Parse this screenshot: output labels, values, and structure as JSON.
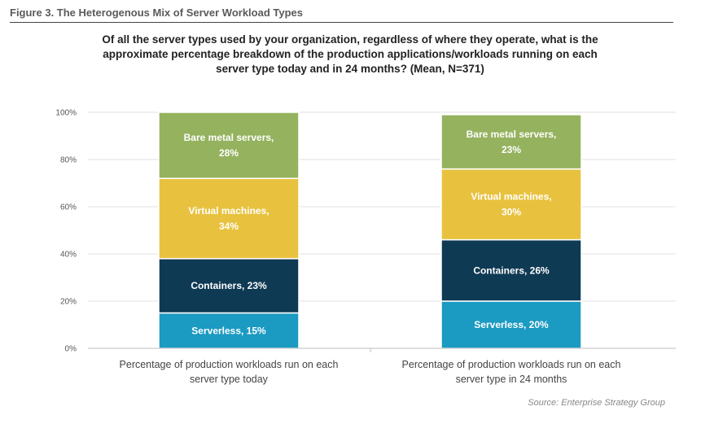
{
  "figure_label": "Figure 3. The Heterogenous Mix of Server Workload Types",
  "source": "Source: Enterprise Strategy Group",
  "colors": {
    "Serverless": "#1b9ac2",
    "Containers": "#0f3a54",
    "Virtual machines": "#e8c23f",
    "Bare metal servers": "#95b25e"
  },
  "chart_data": {
    "type": "bar",
    "stacked": true,
    "title": "Of all the server types used by your organization, regardless of where they operate, what is the approximate percentage breakdown of the production applications/workloads running on each server type today and in 24 months? (Mean, N=371)",
    "categories": [
      "Percentage of production workloads run on each server type today",
      "Percentage of production workloads run on each server type in 24 months"
    ],
    "categories_lines": [
      [
        "Percentage of production workloads run on each",
        "server type today"
      ],
      [
        "Percentage of production workloads run on each",
        "server type in 24 months"
      ]
    ],
    "series": [
      {
        "name": "Serverless",
        "values": [
          15,
          20
        ]
      },
      {
        "name": "Containers",
        "values": [
          23,
          26
        ]
      },
      {
        "name": "Virtual machines",
        "values": [
          34,
          30
        ]
      },
      {
        "name": "Bare metal servers",
        "values": [
          28,
          23
        ]
      }
    ],
    "segment_labels": [
      [
        [
          "Serverless, 15%"
        ],
        [
          "Serverless, 20%"
        ]
      ],
      [
        [
          "Containers, 23%"
        ],
        [
          "Containers, 26%"
        ]
      ],
      [
        [
          "Virtual machines,",
          "34%"
        ],
        [
          "Virtual machines,",
          "30%"
        ]
      ],
      [
        [
          "Bare metal servers,",
          "28%"
        ],
        [
          "Bare metal servers,",
          "23%"
        ]
      ]
    ],
    "ylim": [
      0,
      100
    ],
    "yticks": [
      "0%",
      "20%",
      "40%",
      "60%",
      "80%",
      "100%"
    ],
    "grid": true,
    "legend": "none"
  }
}
